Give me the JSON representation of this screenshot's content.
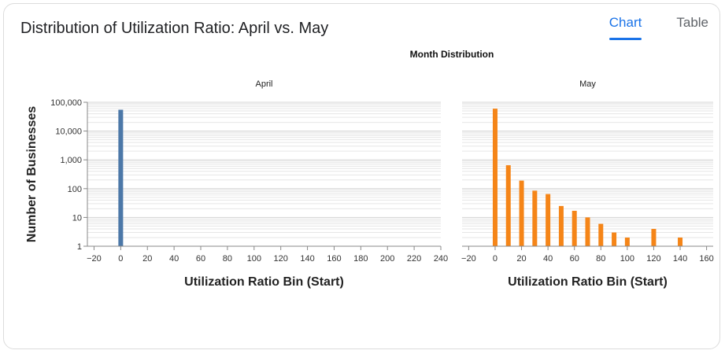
{
  "card": {
    "title": "Distribution of Utilization Ratio: April vs. May"
  },
  "tabs": [
    {
      "label": "Chart",
      "active": true
    },
    {
      "label": "Table",
      "active": false
    }
  ],
  "colors": {
    "april": "#4c78a8",
    "may": "#f58518",
    "accent": "#1a73e8"
  },
  "chart_data": {
    "type": "bar",
    "title": "Month Distribution",
    "ylabel": "Number of Businesses",
    "yscale": "log",
    "ylim": [
      1,
      100000
    ],
    "yticks": [
      "100,000",
      "10,000",
      "1,000",
      "100",
      "10",
      "1"
    ],
    "grid": true,
    "panels": [
      {
        "name": "April",
        "xlabel": "Utilization Ratio Bin (Start)",
        "xlim": [
          -25,
          240
        ],
        "xticks": [
          "−20",
          "0",
          "20",
          "40",
          "60",
          "80",
          "100",
          "120",
          "140",
          "160",
          "180",
          "200",
          "220",
          "240"
        ],
        "x": [
          0
        ],
        "values": [
          55000
        ]
      },
      {
        "name": "May",
        "xlabel": "Utilization Ratio Bin (Start)",
        "xlim": [
          -25,
          165
        ],
        "xticks": [
          "−20",
          "0",
          "20",
          "40",
          "60",
          "80",
          "100",
          "120",
          "140",
          "160"
        ],
        "x": [
          0,
          10,
          20,
          30,
          40,
          50,
          60,
          70,
          80,
          90,
          100,
          120,
          140
        ],
        "values": [
          60000,
          650,
          190,
          85,
          65,
          25,
          17,
          10,
          6,
          3,
          2,
          4,
          2
        ]
      }
    ]
  }
}
